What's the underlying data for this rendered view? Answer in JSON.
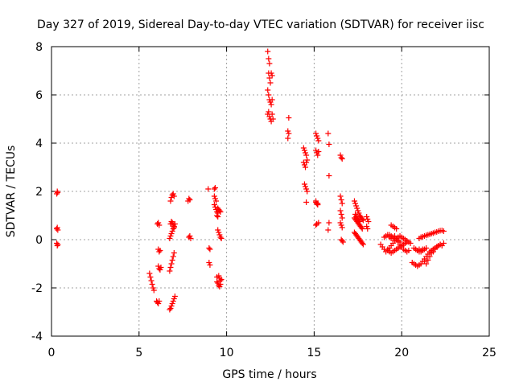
{
  "chart_data": {
    "type": "scatter",
    "title": "Day 327 of 2019, Sidereal Day-to-day VTEC variation (SDTVAR) for receiver iisc",
    "xlabel": "GPS time / hours",
    "ylabel": "SDTVAR / TECUs",
    "xlim": [
      0,
      25
    ],
    "ylim": [
      -4,
      8
    ],
    "xticks": [
      0,
      5,
      10,
      15,
      20,
      25
    ],
    "yticks": [
      -4,
      -2,
      0,
      2,
      4,
      6,
      8
    ],
    "grid": true,
    "marker": "+",
    "color": "#ff0000",
    "series": [
      {
        "name": "SDTVAR",
        "x": [
          0.3,
          0.33,
          0.35,
          0.3,
          0.33,
          0.36,
          0.3,
          0.33,
          0.36,
          5.6,
          5.65,
          5.7,
          5.75,
          5.8,
          5.85,
          6.0,
          6.05,
          6.1,
          6.15,
          6.05,
          6.1,
          6.15,
          6.1,
          6.15,
          6.2,
          6.1,
          6.15,
          6.2,
          6.25,
          6.75,
          6.8,
          6.85,
          6.9,
          6.95,
          7.0,
          7.05,
          6.75,
          6.8,
          6.85,
          6.9,
          6.95,
          7.0,
          6.75,
          6.8,
          6.85,
          6.9,
          6.95,
          7.0,
          7.05,
          6.8,
          6.85,
          6.9,
          6.95,
          7.0,
          6.8,
          6.85,
          6.9,
          6.95,
          7.0,
          7.8,
          7.85,
          7.9,
          7.85,
          7.9,
          7.95,
          8.95,
          9.0,
          9.05,
          9.0,
          9.05,
          9.3,
          9.35,
          9.3,
          9.35,
          9.4,
          9.3,
          9.35,
          9.4,
          9.45,
          9.5,
          9.55,
          9.6,
          9.65,
          9.5,
          9.55,
          9.6,
          9.65,
          9.7,
          9.45,
          9.5,
          9.55,
          9.6,
          9.65,
          9.45,
          9.5,
          9.55,
          9.6,
          9.65,
          9.7,
          9.45,
          9.5,
          12.35,
          12.4,
          12.45,
          12.4,
          12.45,
          12.5,
          12.55,
          12.6,
          12.35,
          12.4,
          12.45,
          12.5,
          12.55,
          12.6,
          12.35,
          12.4,
          12.45,
          12.5,
          12.55,
          12.6,
          12.65,
          13.5,
          13.55,
          13.5,
          13.55,
          14.4,
          14.45,
          14.5,
          14.55,
          14.6,
          14.4,
          14.45,
          14.5,
          14.55,
          14.45,
          14.5,
          14.55,
          14.6,
          14.55,
          15.1,
          15.15,
          15.2,
          15.25,
          15.1,
          15.15,
          15.2,
          15.25,
          15.1,
          15.15,
          15.2,
          15.25,
          15.1,
          15.15,
          15.2,
          15.1,
          15.15,
          15.2,
          15.8,
          15.85,
          15.85,
          15.85,
          15.8,
          16.5,
          16.55,
          16.6,
          16.5,
          16.55,
          16.6,
          16.5,
          16.55,
          16.6,
          16.5,
          16.55,
          16.6,
          16.55,
          16.6,
          16.65,
          17.3,
          17.35,
          17.4,
          17.45,
          17.5,
          17.55,
          17.6,
          17.65,
          17.7,
          17.75,
          17.8,
          17.3,
          17.35,
          17.4,
          17.45,
          17.5,
          17.55,
          17.6,
          17.65,
          17.7,
          17.75,
          17.3,
          17.35,
          17.4,
          17.45,
          17.5,
          17.55,
          17.6,
          17.65,
          17.7,
          17.75,
          17.8,
          17.35,
          17.4,
          17.45,
          17.5,
          17.55,
          17.6,
          18.0,
          18.05,
          18.1,
          18.0,
          18.05,
          18.8,
          18.9,
          19.0,
          19.1,
          19.2,
          19.3,
          19.4,
          19.5,
          19.6,
          19.7,
          19.8,
          19.9,
          20.0,
          20.1,
          20.2,
          20.3,
          20.4,
          20.5,
          19.0,
          19.1,
          19.2,
          19.3,
          19.4,
          19.5,
          19.6,
          19.7,
          19.8,
          19.9,
          20.0,
          20.1,
          20.2,
          20.3,
          20.4,
          19.2,
          19.3,
          19.4,
          19.5,
          19.6,
          19.7,
          19.8,
          19.9,
          20.0,
          20.1,
          20.2,
          20.3,
          19.4,
          19.5,
          19.6,
          19.7,
          19.3,
          19.4,
          19.5,
          19.6,
          19.7,
          19.8,
          19.9,
          20.6,
          20.7,
          20.8,
          20.9,
          21.0,
          21.1,
          21.2,
          21.3,
          21.4,
          21.5,
          21.6,
          21.7,
          21.8,
          21.9,
          22.0,
          22.1,
          22.2,
          22.3,
          22.4,
          20.7,
          20.8,
          20.9,
          21.0,
          21.1,
          21.2,
          21.3,
          21.4,
          21.5,
          21.6,
          21.7,
          21.8,
          21.9,
          22.0,
          22.1,
          22.2,
          21.0,
          21.1,
          21.2,
          21.3,
          21.4,
          21.5,
          21.6,
          21.7,
          21.8,
          21.9,
          22.0,
          22.1,
          22.2,
          22.3,
          22.4,
          20.9,
          21.0,
          21.1,
          21.2,
          21.3,
          21.4
        ],
        "y": [
          1.9,
          2.0,
          1.95,
          0.45,
          0.5,
          0.4,
          -0.15,
          -0.25,
          -0.2,
          -1.4,
          -1.55,
          -1.7,
          -1.85,
          -2.0,
          -2.1,
          -2.55,
          -2.6,
          -2.65,
          -2.55,
          0.65,
          0.7,
          0.6,
          -0.4,
          -0.5,
          -0.45,
          -1.1,
          -1.2,
          -1.25,
          -1.15,
          -2.9,
          -2.85,
          -2.75,
          -2.65,
          -2.55,
          -2.45,
          -2.35,
          -1.3,
          -1.15,
          -1.0,
          -0.85,
          -0.7,
          -0.55,
          0.05,
          0.15,
          0.25,
          0.35,
          0.45,
          0.55,
          0.65,
          0.65,
          0.75,
          0.7,
          0.6,
          0.5,
          1.6,
          1.75,
          1.85,
          1.9,
          1.8,
          1.6,
          1.7,
          1.65,
          0.1,
          0.15,
          0.05,
          2.1,
          -0.35,
          -0.4,
          -0.95,
          -1.05,
          2.1,
          2.15,
          1.8,
          1.7,
          1.6,
          1.45,
          1.35,
          1.25,
          1.15,
          1.3,
          1.25,
          1.2,
          1.15,
          1.1,
          -1.5,
          -1.6,
          -1.7,
          -1.65,
          -1.55,
          -1.8,
          -1.9,
          -1.95,
          -1.85,
          -1.75,
          0.4,
          0.3,
          0.2,
          0.1,
          0.05,
          1.0,
          0.95,
          7.8,
          7.5,
          7.3,
          6.9,
          6.7,
          6.5,
          6.9,
          6.8,
          6.2,
          6.0,
          5.8,
          5.7,
          5.6,
          5.8,
          5.2,
          5.3,
          5.1,
          5.0,
          4.9,
          5.2,
          5.0,
          4.5,
          4.4,
          4.2,
          5.05,
          3.8,
          3.7,
          3.6,
          3.5,
          3.3,
          3.2,
          3.1,
          3.0,
          3.2,
          2.3,
          2.2,
          2.1,
          2.0,
          1.55,
          4.4,
          4.3,
          4.2,
          4.1,
          3.7,
          3.6,
          3.5,
          3.65,
          1.6,
          1.5,
          1.45,
          0.7,
          0.6,
          0.65,
          1.5,
          1.55,
          1.5,
          1.45,
          4.4,
          3.95,
          2.65,
          0.7,
          0.4,
          1.8,
          1.65,
          1.5,
          1.2,
          1.05,
          0.9,
          0.7,
          0.6,
          0.5,
          3.5,
          3.4,
          3.35,
          0.0,
          -0.05,
          -0.1,
          1.6,
          1.5,
          1.4,
          1.3,
          1.2,
          1.1,
          1.0,
          0.95,
          0.9,
          0.85,
          0.8,
          0.9,
          0.85,
          0.8,
          0.75,
          0.7,
          0.65,
          0.6,
          0.55,
          0.5,
          0.45,
          0.3,
          0.25,
          0.2,
          0.15,
          0.1,
          0.05,
          0.0,
          -0.05,
          -0.1,
          -0.15,
          -0.2,
          1.05,
          0.95,
          0.9,
          0.85,
          0.8,
          0.75,
          0.95,
          0.85,
          0.75,
          0.55,
          0.45,
          -0.2,
          -0.3,
          -0.4,
          -0.5,
          -0.45,
          -0.35,
          -0.25,
          -0.15,
          -0.05,
          0.05,
          0.1,
          0.15,
          0.1,
          0.05,
          0.0,
          -0.05,
          -0.1,
          -0.15,
          0.1,
          0.15,
          0.2,
          0.1,
          0.05,
          0.1,
          0.15,
          0.0,
          -0.1,
          -0.2,
          -0.3,
          -0.4,
          -0.45,
          -0.5,
          -0.45,
          -0.4,
          -0.5,
          -0.55,
          -0.5,
          -0.45,
          -0.4,
          -0.35,
          -0.3,
          -0.25,
          -0.2,
          -0.15,
          -0.1,
          0.6,
          0.55,
          0.5,
          0.45,
          0.2,
          0.15,
          0.1,
          0.05,
          0.0,
          -0.05,
          -0.1,
          -0.95,
          -1.0,
          -1.05,
          -1.1,
          -1.05,
          -1.0,
          -0.9,
          -0.8,
          -0.7,
          -0.6,
          -0.5,
          -0.45,
          -0.4,
          -0.35,
          -0.3,
          -0.25,
          -0.2,
          -0.25,
          -0.15,
          -0.35,
          -0.4,
          -0.45,
          -0.5,
          -0.45,
          -0.4,
          -0.9,
          -1.0,
          -0.85,
          -0.7,
          -0.55,
          -0.5,
          -0.4,
          -0.3,
          -0.25,
          -0.2,
          0.05,
          0.1,
          0.12,
          0.15,
          0.18,
          0.2,
          0.22,
          0.25,
          0.27,
          0.3,
          0.32,
          0.35,
          0.37,
          0.38,
          0.35,
          -0.45,
          -0.4,
          -0.5,
          -0.45,
          -0.4,
          -0.35
        ]
      }
    ]
  }
}
